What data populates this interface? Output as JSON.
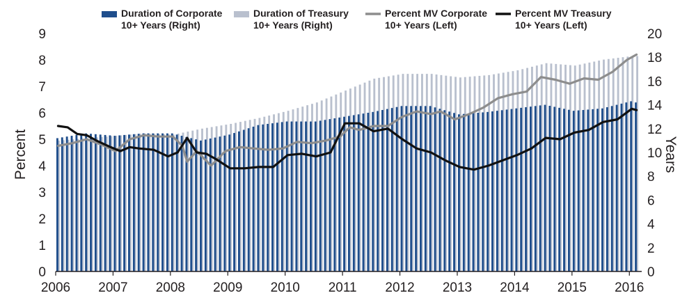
{
  "chart_data": {
    "type": "bar+line",
    "x_start": "2006-01",
    "x_end": "2016-02",
    "x_ticks": [
      "2006",
      "2007",
      "2008",
      "2009",
      "2010",
      "2011",
      "2012",
      "2013",
      "2014",
      "2015",
      "2016"
    ],
    "ylabel_left": "Percent",
    "ylabel_right": "Years",
    "ylim_left": [
      0,
      9
    ],
    "ylim_right": [
      0,
      20
    ],
    "yticks_left": [
      "0",
      "1",
      "2",
      "3",
      "4",
      "5",
      "6",
      "7",
      "8",
      "9"
    ],
    "yticks_right": [
      "0",
      "2",
      "4",
      "6",
      "8",
      "10",
      "12",
      "14",
      "16",
      "18",
      "20"
    ],
    "grid": false,
    "legend_position": "top",
    "colors": {
      "duration_corporate": "#1f4e8c",
      "duration_treasury": "#b9c0ce",
      "pct_mv_corporate": "#8d8d8d",
      "pct_mv_treasury": "#111111"
    },
    "legend": [
      {
        "key": "duration_corporate",
        "kind": "bar",
        "line1": "Duration of Corporate",
        "line2": "10+ Years (Right)"
      },
      {
        "key": "duration_treasury",
        "kind": "bar",
        "line1": "Duration of Treasury",
        "line2": "10+ Years (Right)"
      },
      {
        "key": "pct_mv_corporate",
        "kind": "line",
        "line1": "Percent MV Corporate",
        "line2": "10+ Years (Left)"
      },
      {
        "key": "pct_mv_treasury",
        "kind": "line",
        "line1": "Percent MV Treasury",
        "line2": "10+ Years (Left)"
      }
    ],
    "series": [
      {
        "name": "Duration of Corporate 10+ Years (Right)",
        "key": "duration_corporate",
        "axis": "right",
        "kind": "bar",
        "points": [
          [
            "2006-01",
            11.2
          ],
          [
            "2006-07",
            11.6
          ],
          [
            "2007-01",
            11.4
          ],
          [
            "2007-07",
            11.6
          ],
          [
            "2008-01",
            11.6
          ],
          [
            "2008-07",
            11.0
          ],
          [
            "2009-01",
            11.5
          ],
          [
            "2009-07",
            12.3
          ],
          [
            "2010-01",
            12.6
          ],
          [
            "2010-07",
            12.6
          ],
          [
            "2011-01",
            13.0
          ],
          [
            "2011-07",
            13.4
          ],
          [
            "2012-01",
            13.9
          ],
          [
            "2012-07",
            13.9
          ],
          [
            "2013-01",
            13.2
          ],
          [
            "2013-07",
            13.4
          ],
          [
            "2014-01",
            13.7
          ],
          [
            "2014-07",
            14.0
          ],
          [
            "2015-01",
            13.5
          ],
          [
            "2015-07",
            13.7
          ],
          [
            "2016-01",
            14.3
          ],
          [
            "2016-02",
            14.2
          ]
        ]
      },
      {
        "name": "Duration of Treasury 10+ Years (Right)",
        "key": "duration_treasury",
        "axis": "right",
        "kind": "bar",
        "points": [
          [
            "2006-01",
            11.0
          ],
          [
            "2006-07",
            11.2
          ],
          [
            "2007-01",
            11.4
          ],
          [
            "2007-07",
            11.6
          ],
          [
            "2008-01",
            11.5
          ],
          [
            "2008-07",
            12.0
          ],
          [
            "2009-01",
            12.4
          ],
          [
            "2009-07",
            12.9
          ],
          [
            "2010-01",
            13.5
          ],
          [
            "2010-07",
            14.2
          ],
          [
            "2011-01",
            15.2
          ],
          [
            "2011-07",
            16.2
          ],
          [
            "2012-01",
            16.6
          ],
          [
            "2012-07",
            16.6
          ],
          [
            "2013-01",
            16.3
          ],
          [
            "2013-07",
            16.5
          ],
          [
            "2014-01",
            16.9
          ],
          [
            "2014-07",
            17.5
          ],
          [
            "2015-01",
            17.3
          ],
          [
            "2015-07",
            17.8
          ],
          [
            "2016-01",
            18.1
          ],
          [
            "2016-02",
            18.1
          ]
        ]
      },
      {
        "name": "Percent MV Corporate 10+ Years (Left)",
        "key": "pct_mv_corporate",
        "axis": "left",
        "kind": "line",
        "points": [
          [
            "2006-01",
            4.75
          ],
          [
            "2006-04",
            4.85
          ],
          [
            "2006-07",
            5.0
          ],
          [
            "2006-10",
            4.8
          ],
          [
            "2007-01",
            4.55
          ],
          [
            "2007-04",
            5.0
          ],
          [
            "2007-07",
            5.15
          ],
          [
            "2007-10",
            5.1
          ],
          [
            "2008-01",
            5.1
          ],
          [
            "2008-03",
            4.75
          ],
          [
            "2008-04",
            4.15
          ],
          [
            "2008-06",
            4.55
          ],
          [
            "2008-09",
            4.0
          ],
          [
            "2008-12",
            4.55
          ],
          [
            "2009-03",
            4.7
          ],
          [
            "2009-06",
            4.65
          ],
          [
            "2009-09",
            4.6
          ],
          [
            "2009-12",
            4.65
          ],
          [
            "2010-03",
            4.9
          ],
          [
            "2010-06",
            4.85
          ],
          [
            "2010-09",
            4.95
          ],
          [
            "2010-12",
            5.1
          ],
          [
            "2011-02",
            5.45
          ],
          [
            "2011-04",
            5.35
          ],
          [
            "2011-07",
            5.5
          ],
          [
            "2011-10",
            5.5
          ],
          [
            "2012-01",
            5.85
          ],
          [
            "2012-04",
            6.05
          ],
          [
            "2012-07",
            5.95
          ],
          [
            "2012-09",
            6.05
          ],
          [
            "2012-12",
            5.75
          ],
          [
            "2013-03",
            5.95
          ],
          [
            "2013-06",
            6.2
          ],
          [
            "2013-09",
            6.55
          ],
          [
            "2013-12",
            6.7
          ],
          [
            "2014-03",
            6.8
          ],
          [
            "2014-06",
            7.35
          ],
          [
            "2014-09",
            7.25
          ],
          [
            "2014-12",
            7.1
          ],
          [
            "2015-03",
            7.3
          ],
          [
            "2015-06",
            7.25
          ],
          [
            "2015-09",
            7.55
          ],
          [
            "2015-12",
            8.0
          ],
          [
            "2016-02",
            8.2
          ]
        ]
      },
      {
        "name": "Percent MV Treasury 10+ Years (Left)",
        "key": "pct_mv_treasury",
        "axis": "left",
        "kind": "line",
        "points": [
          [
            "2006-01",
            5.5
          ],
          [
            "2006-03",
            5.45
          ],
          [
            "2006-05",
            5.2
          ],
          [
            "2006-07",
            5.15
          ],
          [
            "2006-09",
            4.95
          ],
          [
            "2006-12",
            4.7
          ],
          [
            "2007-02",
            4.55
          ],
          [
            "2007-04",
            4.7
          ],
          [
            "2007-06",
            4.65
          ],
          [
            "2007-09",
            4.6
          ],
          [
            "2007-12",
            4.35
          ],
          [
            "2008-02",
            4.5
          ],
          [
            "2008-04",
            5.05
          ],
          [
            "2008-06",
            4.5
          ],
          [
            "2008-08",
            4.45
          ],
          [
            "2008-10",
            4.25
          ],
          [
            "2009-01",
            3.9
          ],
          [
            "2009-04",
            3.9
          ],
          [
            "2009-07",
            3.95
          ],
          [
            "2009-10",
            3.95
          ],
          [
            "2010-01",
            4.4
          ],
          [
            "2010-04",
            4.45
          ],
          [
            "2010-07",
            4.35
          ],
          [
            "2010-10",
            4.5
          ],
          [
            "2011-01",
            5.6
          ],
          [
            "2011-04",
            5.6
          ],
          [
            "2011-07",
            5.3
          ],
          [
            "2011-10",
            5.4
          ],
          [
            "2012-01",
            5.0
          ],
          [
            "2012-04",
            4.65
          ],
          [
            "2012-07",
            4.5
          ],
          [
            "2012-10",
            4.2
          ],
          [
            "2013-01",
            3.95
          ],
          [
            "2013-04",
            3.85
          ],
          [
            "2013-07",
            4.0
          ],
          [
            "2013-10",
            4.2
          ],
          [
            "2014-01",
            4.4
          ],
          [
            "2014-04",
            4.65
          ],
          [
            "2014-07",
            5.05
          ],
          [
            "2014-10",
            5.0
          ],
          [
            "2015-01",
            5.25
          ],
          [
            "2015-04",
            5.35
          ],
          [
            "2015-07",
            5.65
          ],
          [
            "2015-10",
            5.75
          ],
          [
            "2016-01",
            6.15
          ],
          [
            "2016-02",
            6.1
          ]
        ]
      }
    ]
  }
}
